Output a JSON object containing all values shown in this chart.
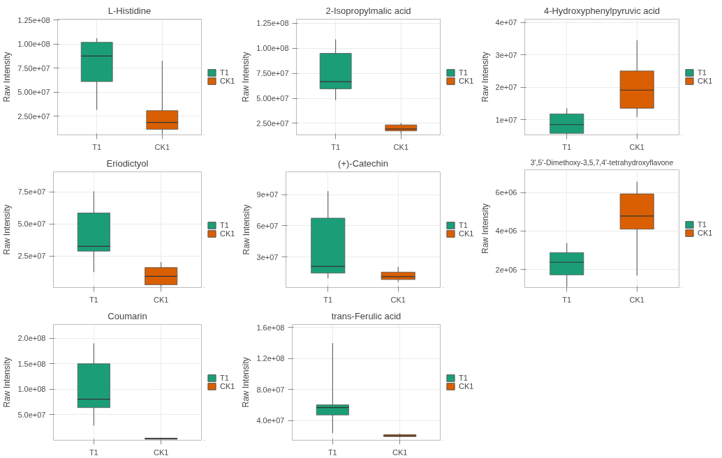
{
  "chart_data": [
    {
      "type": "box",
      "title": "L-Histidine",
      "ylabel": "Raw Intensity",
      "categories": [
        "T1",
        "CK1"
      ],
      "ylim": [
        5800000,
        126000000
      ],
      "yticks": [
        {
          "value": 25000000,
          "label": "2.50e+07"
        },
        {
          "value": 50000000,
          "label": "5.00e+07"
        },
        {
          "value": 75000000,
          "label": "7.50e+07"
        },
        {
          "value": 100000000,
          "label": "1.00e+08"
        },
        {
          "value": 125000000,
          "label": "1.25e+08"
        }
      ],
      "grid": true,
      "legend": "right",
      "series": [
        {
          "name": "T1",
          "color": "#1b9e77",
          "boxes": [
            {
              "low": 31700000,
              "q1": 61200000,
              "median": 87700000,
              "q3": 102000000,
              "high": 106300000
            },
            null
          ]
        },
        {
          "name": "CK1",
          "color": "#d95f02",
          "boxes": [
            null,
            {
              "low": 6200000,
              "q1": 11600000,
              "median": 18700000,
              "q3": 31000000,
              "high": 82800000
            }
          ]
        }
      ]
    },
    {
      "type": "box",
      "title": "2-Isopropylmalic acid",
      "ylabel": "Raw Intensity",
      "categories": [
        "T1",
        "CK1"
      ],
      "ylim": [
        13500000,
        129000000
      ],
      "yticks": [
        {
          "value": 25000000,
          "label": "2.50e+07"
        },
        {
          "value": 50000000,
          "label": "5.00e+07"
        },
        {
          "value": 75000000,
          "label": "7.50e+07"
        },
        {
          "value": 100000000,
          "label": "1.00e+08"
        },
        {
          "value": 125000000,
          "label": "1.25e+08"
        }
      ],
      "grid": true,
      "legend": "right",
      "series": [
        {
          "name": "T1",
          "color": "#1b9e77",
          "boxes": [
            {
              "low": 48200000,
              "q1": 59500000,
              "median": 66600000,
              "q3": 94900000,
              "high": 108900000
            },
            null
          ]
        },
        {
          "name": "CK1",
          "color": "#d95f02",
          "boxes": [
            null,
            {
              "low": 14600000,
              "q1": 17500000,
              "median": 19300000,
              "q3": 23500000,
              "high": 25400000
            }
          ]
        }
      ]
    },
    {
      "type": "box",
      "title": "4-Hydroxyphenylpyruvic acid",
      "ylabel": "Raw Intensity",
      "categories": [
        "T1",
        "CK1"
      ],
      "ylim": [
        5280000,
        41000000
      ],
      "yticks": [
        {
          "value": 10000000,
          "label": "1e+07"
        },
        {
          "value": 20000000,
          "label": "2e+07"
        },
        {
          "value": 30000000,
          "label": "3e+07"
        },
        {
          "value": 40000000,
          "label": "4e+07"
        }
      ],
      "grid": true,
      "legend": "right",
      "series": [
        {
          "name": "T1",
          "color": "#1b9e77",
          "boxes": [
            {
              "low": 5400000,
              "q1": 5750000,
              "median": 8450000,
              "q3": 11750000,
              "high": 13500000
            },
            null
          ]
        },
        {
          "name": "CK1",
          "color": "#d95f02",
          "boxes": [
            null,
            {
              "low": 10800000,
              "q1": 13500000,
              "median": 19100000,
              "q3": 25000000,
              "high": 34500000
            }
          ]
        }
      ]
    },
    {
      "type": "box",
      "title": "Eriodictyol",
      "ylabel": "Raw Intensity",
      "categories": [
        "T1",
        "CK1"
      ],
      "ylim": [
        500000,
        90700000
      ],
      "yticks": [
        {
          "value": 25000000,
          "label": "2.5e+07"
        },
        {
          "value": 50000000,
          "label": "5.0e+07"
        },
        {
          "value": 75000000,
          "label": "7.5e+07"
        }
      ],
      "grid": true,
      "legend": "right",
      "series": [
        {
          "name": "T1",
          "color": "#1b9e77",
          "boxes": [
            {
              "low": 12500000,
              "q1": 28900000,
              "median": 32600000,
              "q3": 58600000,
              "high": 75500000
            },
            null
          ]
        },
        {
          "name": "CK1",
          "color": "#d95f02",
          "boxes": [
            null,
            {
              "low": 1000000,
              "q1": 2700000,
              "median": 9300000,
              "q3": 16100000,
              "high": 20300000
            }
          ]
        }
      ]
    },
    {
      "type": "box",
      "title": "(+)-Catechin",
      "ylabel": "Raw Intensity",
      "categories": [
        "T1",
        "CK1"
      ],
      "ylim": [
        550000,
        112000000
      ],
      "yticks": [
        {
          "value": 30000000,
          "label": "3e+07"
        },
        {
          "value": 60000000,
          "label": "6e+07"
        },
        {
          "value": 90000000,
          "label": "9e+07"
        }
      ],
      "grid": true,
      "legend": "right",
      "series": [
        {
          "name": "T1",
          "color": "#1b9e77",
          "boxes": [
            {
              "low": 9500000,
              "q1": 14500000,
              "median": 21000000,
              "q3": 67400000,
              "high": 93400000
            },
            null
          ]
        },
        {
          "name": "CK1",
          "color": "#d95f02",
          "boxes": [
            null,
            {
              "low": 5800000,
              "q1": 8300000,
              "median": 11000000,
              "q3": 15400000,
              "high": 20400000
            }
          ]
        }
      ]
    },
    {
      "type": "box",
      "title": "3',5'-Dimethoxy-3,5,7,4'-tetrahydroxyflavone",
      "ylabel": "Raw Intensity",
      "categories": [
        "T1",
        "CK1"
      ],
      "ylim": [
        1070000,
        7180000
      ],
      "yticks": [
        {
          "value": 2000000,
          "label": "2e+06"
        },
        {
          "value": 4000000,
          "label": "4e+06"
        },
        {
          "value": 6000000,
          "label": "6e+06"
        }
      ],
      "grid": true,
      "legend": "right",
      "series": [
        {
          "name": "T1",
          "color": "#1b9e77",
          "boxes": [
            {
              "low": 1100000,
              "q1": 1730000,
              "median": 2380000,
              "q3": 2880000,
              "high": 3380000
            },
            null
          ]
        },
        {
          "name": "CK1",
          "color": "#d95f02",
          "boxes": [
            null,
            {
              "low": 1690000,
              "q1": 4100000,
              "median": 4780000,
              "q3": 5930000,
              "high": 6560000
            }
          ]
        }
      ]
    },
    {
      "type": "box",
      "title": "Coumarin",
      "ylabel": "Raw Intensity",
      "categories": [
        "T1",
        "CK1"
      ],
      "ylim": [
        0,
        227000000
      ],
      "yticks": [
        {
          "value": 50000000,
          "label": "5.0e+07"
        },
        {
          "value": 100000000,
          "label": "1.0e+08"
        },
        {
          "value": 150000000,
          "label": "1.5e+08"
        },
        {
          "value": 200000000,
          "label": "2.0e+08"
        }
      ],
      "grid": true,
      "legend": "right",
      "series": [
        {
          "name": "T1",
          "color": "#1b9e77",
          "boxes": [
            {
              "low": 28700000,
              "q1": 64000000,
              "median": 80500000,
              "q3": 150000000,
              "high": 190000000
            },
            null
          ]
        },
        {
          "name": "CK1",
          "color": "#d95f02",
          "boxes": [
            null,
            {
              "low": 1500000,
              "q1": 2000000,
              "median": 3000000,
              "q3": 4000000,
              "high": 5000000
            }
          ]
        }
      ]
    },
    {
      "type": "box",
      "title": "trans-Ferulic acid",
      "ylabel": "Raw Intensity",
      "categories": [
        "T1",
        "CK1"
      ],
      "ylim": [
        14300000,
        164000000
      ],
      "yticks": [
        {
          "value": 40000000,
          "label": "4.0e+07"
        },
        {
          "value": 80000000,
          "label": "8.0e+07"
        },
        {
          "value": 120000000,
          "label": "1.2e+08"
        },
        {
          "value": 160000000,
          "label": "1.6e+08"
        }
      ],
      "grid": true,
      "legend": "right",
      "series": [
        {
          "name": "T1",
          "color": "#1b9e77",
          "boxes": [
            {
              "low": 23400000,
              "q1": 47000000,
              "median": 56500000,
              "q3": 60000000,
              "high": 140000000
            },
            null
          ]
        },
        {
          "name": "CK1",
          "color": "#d95f02",
          "boxes": [
            null,
            {
              "low": 17500000,
              "q1": 19000000,
              "median": 20000000,
              "q3": 21500000,
              "high": 23000000
            }
          ]
        }
      ]
    }
  ]
}
